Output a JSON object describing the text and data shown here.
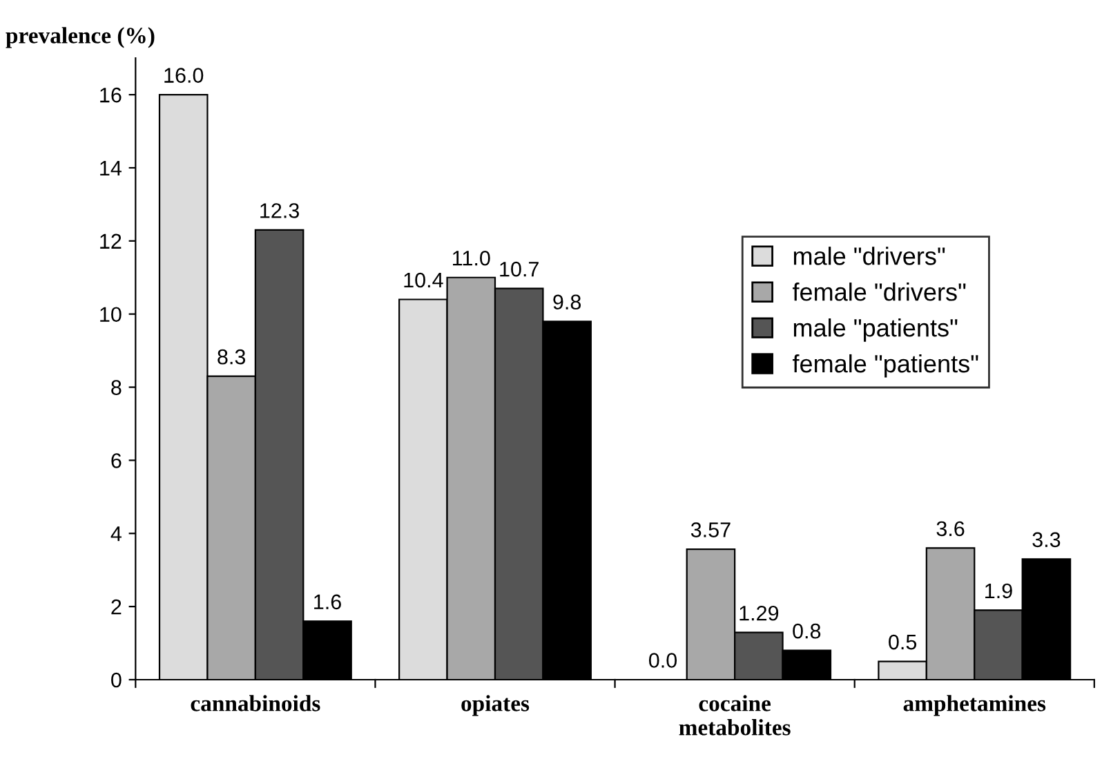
{
  "chart_data": {
    "type": "bar",
    "ylabel": "prevalence (%)",
    "categories": [
      "cannabinoids",
      "opiates",
      "cocaine\nmetabolites",
      "amphetamines"
    ],
    "series": [
      {
        "name": "male \"drivers\"",
        "color": "#dcdcdc",
        "values": [
          16.0,
          10.4,
          0.0,
          0.5
        ],
        "value_labels": [
          "16.0",
          "10.4",
          "0.0",
          "0.5"
        ]
      },
      {
        "name": "female \"drivers\"",
        "color": "#a8a8a8",
        "values": [
          8.3,
          11.0,
          3.57,
          3.6
        ],
        "value_labels": [
          "8.3",
          "11.0",
          "3.57",
          "3.6"
        ]
      },
      {
        "name": "male \"patients\"",
        "color": "#555555",
        "values": [
          12.3,
          10.7,
          1.29,
          1.9
        ],
        "value_labels": [
          "12.3",
          "10.7",
          "1.29",
          "1.9"
        ]
      },
      {
        "name": "female \"patients\"",
        "color": "#000000",
        "values": [
          1.6,
          9.8,
          0.8,
          3.3
        ],
        "value_labels": [
          "1.6",
          "9.8",
          "0.8",
          "3.3"
        ]
      }
    ],
    "ylim": [
      0,
      17
    ],
    "yticks": [
      0,
      2,
      4,
      6,
      8,
      10,
      12,
      14,
      16
    ],
    "grid": false,
    "legend": "right"
  }
}
